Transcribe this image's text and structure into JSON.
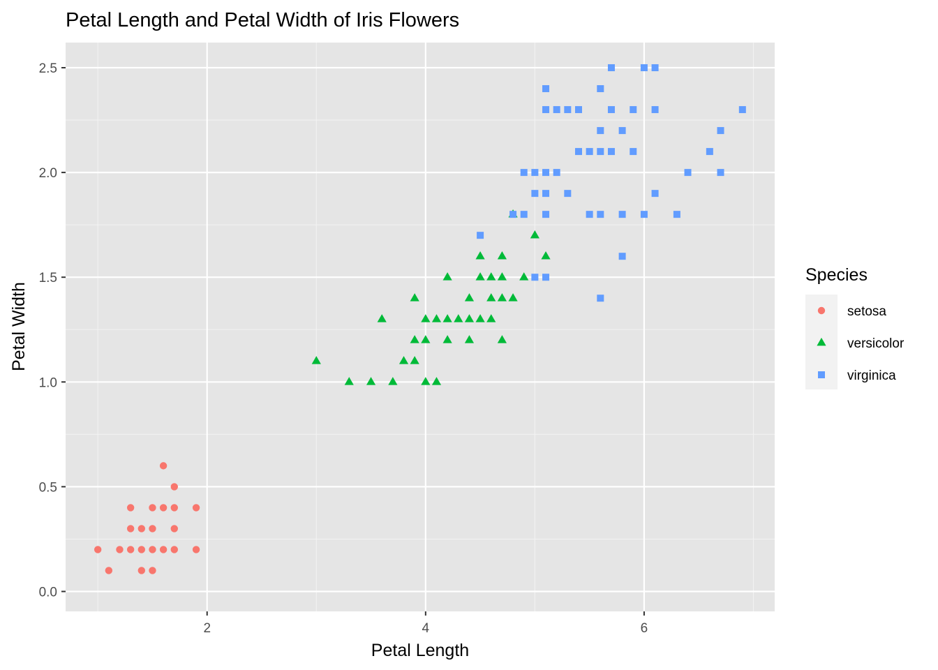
{
  "chart_data": {
    "type": "scatter",
    "title": "Petal Length and Petal Width of Iris Flowers",
    "xlabel": "Petal Length",
    "ylabel": "Petal Width",
    "xlim": [
      0.705,
      7.195
    ],
    "ylim": [
      -0.095,
      2.62
    ],
    "x_ticks": [
      2,
      4,
      6
    ],
    "x_tick_labels": [
      "2",
      "4",
      "6"
    ],
    "y_ticks": [
      0,
      0.5,
      1,
      1.5,
      2,
      2.5
    ],
    "y_tick_labels": [
      "0.0",
      "0.5",
      "1.0",
      "1.5",
      "2.0",
      "2.5"
    ],
    "grid": true,
    "background": "#e5e5e5",
    "legend": {
      "title": "Species",
      "position": "right",
      "entries": [
        "setosa",
        "versicolor",
        "virginica"
      ]
    },
    "series": [
      {
        "name": "setosa",
        "marker": "circle",
        "color": "#f8766d",
        "points": [
          [
            1.0,
            0.2
          ],
          [
            1.1,
            0.1
          ],
          [
            1.2,
            0.2
          ],
          [
            1.3,
            0.2
          ],
          [
            1.3,
            0.3
          ],
          [
            1.3,
            0.4
          ],
          [
            1.4,
            0.1
          ],
          [
            1.4,
            0.2
          ],
          [
            1.4,
            0.3
          ],
          [
            1.5,
            0.1
          ],
          [
            1.5,
            0.2
          ],
          [
            1.5,
            0.3
          ],
          [
            1.5,
            0.4
          ],
          [
            1.6,
            0.2
          ],
          [
            1.6,
            0.4
          ],
          [
            1.6,
            0.6
          ],
          [
            1.7,
            0.2
          ],
          [
            1.7,
            0.3
          ],
          [
            1.7,
            0.4
          ],
          [
            1.7,
            0.5
          ],
          [
            1.9,
            0.2
          ],
          [
            1.9,
            0.4
          ]
        ]
      },
      {
        "name": "versicolor",
        "marker": "triangle",
        "color": "#00ba38",
        "points": [
          [
            3.0,
            1.1
          ],
          [
            3.3,
            1.0
          ],
          [
            3.5,
            1.0
          ],
          [
            3.6,
            1.3
          ],
          [
            3.7,
            1.0
          ],
          [
            3.8,
            1.1
          ],
          [
            3.9,
            1.1
          ],
          [
            3.9,
            1.2
          ],
          [
            3.9,
            1.4
          ],
          [
            4.0,
            1.0
          ],
          [
            4.0,
            1.2
          ],
          [
            4.0,
            1.3
          ],
          [
            4.1,
            1.0
          ],
          [
            4.1,
            1.3
          ],
          [
            4.2,
            1.2
          ],
          [
            4.2,
            1.3
          ],
          [
            4.2,
            1.5
          ],
          [
            4.3,
            1.3
          ],
          [
            4.4,
            1.2
          ],
          [
            4.4,
            1.3
          ],
          [
            4.4,
            1.4
          ],
          [
            4.5,
            1.3
          ],
          [
            4.5,
            1.5
          ],
          [
            4.5,
            1.6
          ],
          [
            4.6,
            1.3
          ],
          [
            4.6,
            1.4
          ],
          [
            4.6,
            1.5
          ],
          [
            4.7,
            1.2
          ],
          [
            4.7,
            1.4
          ],
          [
            4.7,
            1.5
          ],
          [
            4.7,
            1.6
          ],
          [
            4.8,
            1.4
          ],
          [
            4.8,
            1.8
          ],
          [
            4.9,
            1.5
          ],
          [
            5.0,
            1.7
          ],
          [
            5.1,
            1.6
          ]
        ]
      },
      {
        "name": "virginica",
        "marker": "square",
        "color": "#619cff",
        "points": [
          [
            4.5,
            1.7
          ],
          [
            4.8,
            1.8
          ],
          [
            4.9,
            1.8
          ],
          [
            4.9,
            2.0
          ],
          [
            5.0,
            1.5
          ],
          [
            5.0,
            1.9
          ],
          [
            5.0,
            2.0
          ],
          [
            5.1,
            1.5
          ],
          [
            5.1,
            1.8
          ],
          [
            5.1,
            1.9
          ],
          [
            5.1,
            2.0
          ],
          [
            5.1,
            2.3
          ],
          [
            5.1,
            2.4
          ],
          [
            5.2,
            2.0
          ],
          [
            5.2,
            2.3
          ],
          [
            5.3,
            1.9
          ],
          [
            5.3,
            2.3
          ],
          [
            5.4,
            2.1
          ],
          [
            5.4,
            2.3
          ],
          [
            5.5,
            1.8
          ],
          [
            5.5,
            2.1
          ],
          [
            5.6,
            1.4
          ],
          [
            5.6,
            1.8
          ],
          [
            5.6,
            2.1
          ],
          [
            5.6,
            2.2
          ],
          [
            5.6,
            2.4
          ],
          [
            5.7,
            2.1
          ],
          [
            5.7,
            2.3
          ],
          [
            5.7,
            2.5
          ],
          [
            5.8,
            1.6
          ],
          [
            5.8,
            1.8
          ],
          [
            5.8,
            2.2
          ],
          [
            5.9,
            2.1
          ],
          [
            5.9,
            2.3
          ],
          [
            6.0,
            1.8
          ],
          [
            6.0,
            2.5
          ],
          [
            6.1,
            1.9
          ],
          [
            6.1,
            2.3
          ],
          [
            6.1,
            2.5
          ],
          [
            6.3,
            1.8
          ],
          [
            6.4,
            2.0
          ],
          [
            6.6,
            2.1
          ],
          [
            6.7,
            2.0
          ],
          [
            6.7,
            2.2
          ],
          [
            6.9,
            2.3
          ]
        ]
      }
    ]
  }
}
